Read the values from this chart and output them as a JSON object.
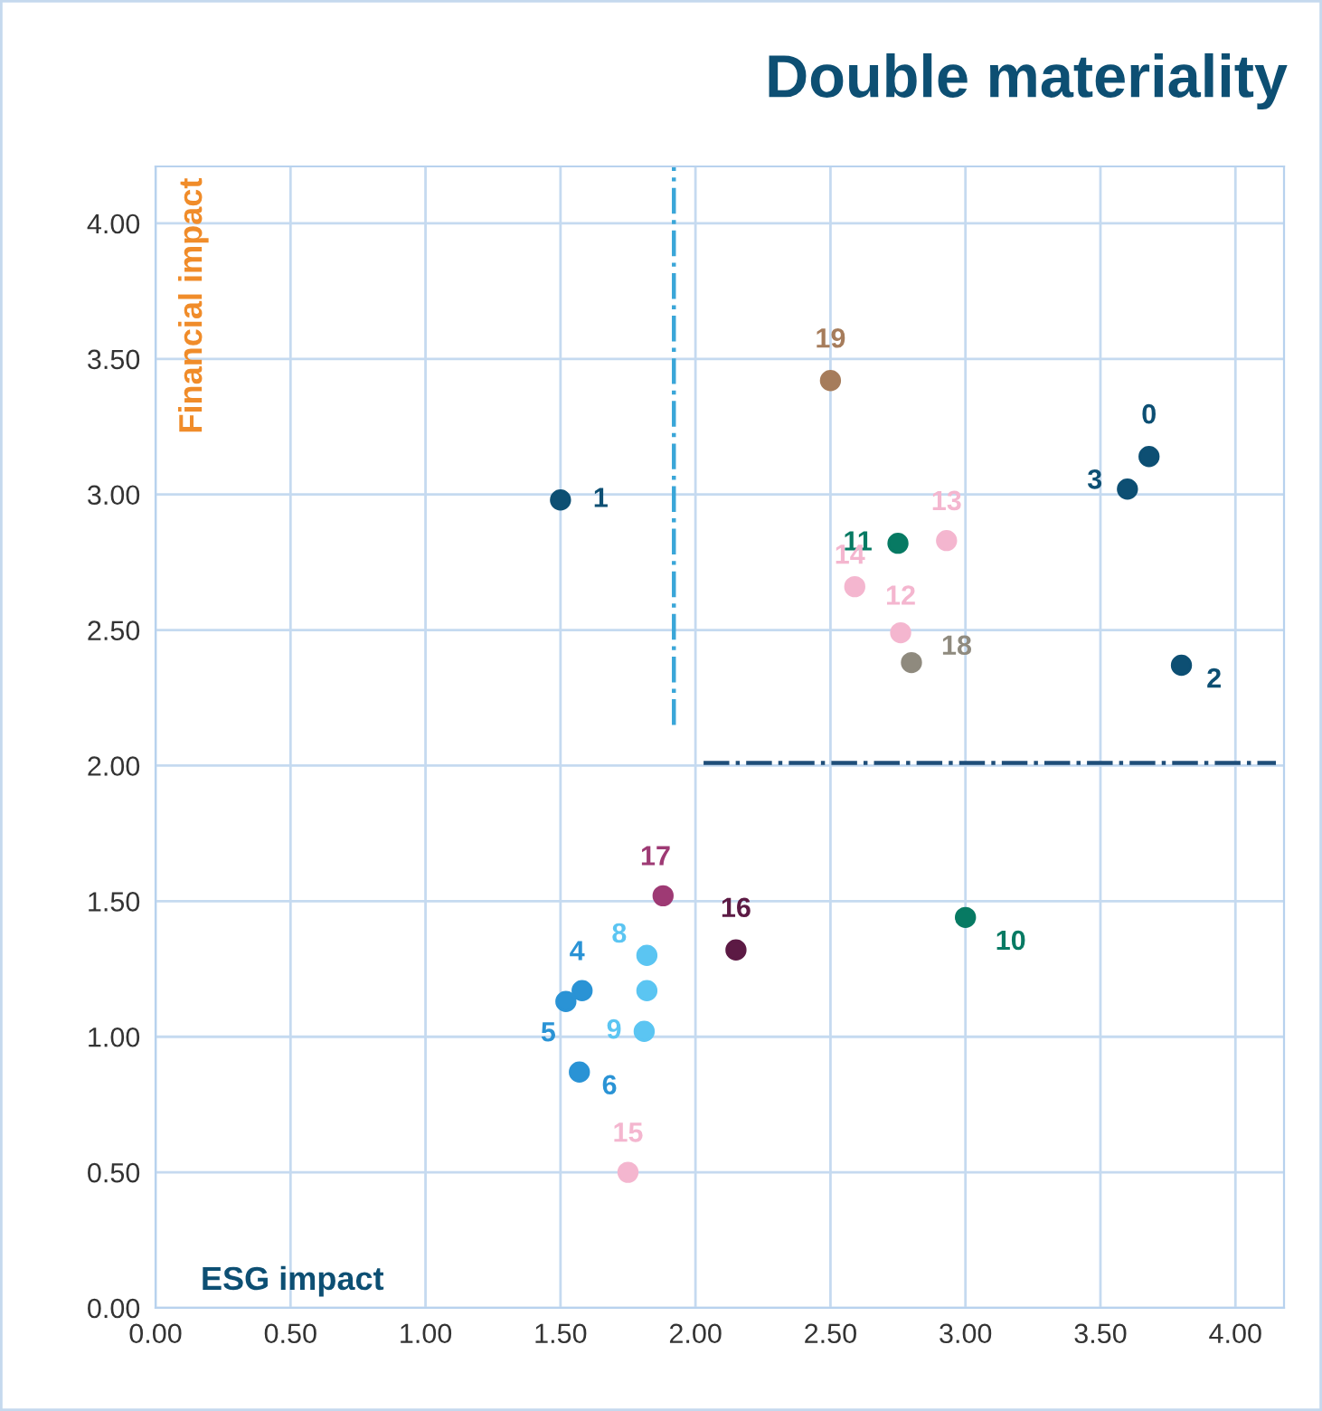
{
  "chart_data": {
    "type": "scatter",
    "title": "Double materiality",
    "xlabel": "ESG impact",
    "ylabel": "Financial impact",
    "xlim": [
      0,
      4.18
    ],
    "ylim": [
      0,
      4.21
    ],
    "xticks": [
      {
        "value": 0,
        "label": "0.00"
      },
      {
        "value": 0.5,
        "label": "0.50"
      },
      {
        "value": 1,
        "label": "1.00"
      },
      {
        "value": 1.5,
        "label": "1.50"
      },
      {
        "value": 2,
        "label": "2.00"
      },
      {
        "value": 2.5,
        "label": "2.50"
      },
      {
        "value": 3,
        "label": "3.00"
      },
      {
        "value": 3.5,
        "label": "3.50"
      },
      {
        "value": 4,
        "label": "4.00"
      }
    ],
    "yticks": [
      {
        "value": 0,
        "label": "0.00"
      },
      {
        "value": 0.5,
        "label": "0.50"
      },
      {
        "value": 1,
        "label": "1.00"
      },
      {
        "value": 1.5,
        "label": "1.50"
      },
      {
        "value": 2,
        "label": "2.00"
      },
      {
        "value": 2.5,
        "label": "2.50"
      },
      {
        "value": 3,
        "label": "3.00"
      },
      {
        "value": 3.5,
        "label": "3.50"
      },
      {
        "value": 4,
        "label": "4.00"
      }
    ],
    "grid": true,
    "marker": "circle",
    "ref_lines": [
      {
        "axis": "x",
        "value": 1.92,
        "color": "#3aa6d8",
        "line_style": "dashdot"
      },
      {
        "axis": "y",
        "value": 2.01,
        "color": "#1f4e79",
        "line_style": "dashdot"
      }
    ],
    "series": [
      {
        "name": "0",
        "color": "#0d4f73",
        "x": [
          3.68
        ],
        "values": [
          3.14
        ]
      },
      {
        "name": "1",
        "color": "#0d4f73",
        "x": [
          1.5
        ],
        "values": [
          2.98
        ]
      },
      {
        "name": "2",
        "color": "#0d4f73",
        "x": [
          3.8
        ],
        "values": [
          2.37
        ]
      },
      {
        "name": "3",
        "color": "#0d4f73",
        "x": [
          3.6
        ],
        "values": [
          3.02
        ]
      },
      {
        "name": "4",
        "color": "#2a93d5",
        "x": [
          1.58
        ],
        "values": [
          1.17
        ]
      },
      {
        "name": "5",
        "color": "#2a93d5",
        "x": [
          1.52
        ],
        "values": [
          1.13
        ]
      },
      {
        "name": "6",
        "color": "#2a93d5",
        "x": [
          1.57
        ],
        "values": [
          0.87
        ]
      },
      {
        "color": "#5bc5f2",
        "x": [
          1.82
        ],
        "values": [
          1.17
        ]
      },
      {
        "name": "8",
        "color": "#5bc5f2",
        "x": [
          1.82
        ],
        "values": [
          1.3
        ]
      },
      {
        "name": "9",
        "color": "#5bc5f2",
        "x": [
          1.81
        ],
        "values": [
          1.02
        ]
      },
      {
        "name": "10",
        "color": "#077a63",
        "x": [
          3.0
        ],
        "values": [
          1.44
        ]
      },
      {
        "name": "11",
        "color": "#077a63",
        "x": [
          2.75
        ],
        "values": [
          2.82
        ]
      },
      {
        "name": "12",
        "color": "#f4b6cf",
        "x": [
          2.76
        ],
        "values": [
          2.49
        ]
      },
      {
        "name": "13",
        "color": "#f4b6cf",
        "x": [
          2.93
        ],
        "values": [
          2.83
        ]
      },
      {
        "name": "14",
        "color": "#f4b6cf",
        "x": [
          2.59
        ],
        "values": [
          2.66
        ]
      },
      {
        "name": "15",
        "color": "#f4b6cf",
        "x": [
          1.75
        ],
        "values": [
          0.5
        ]
      },
      {
        "name": "16",
        "color": "#5c1a44",
        "x": [
          2.15
        ],
        "values": [
          1.32
        ]
      },
      {
        "name": "17",
        "color": "#9e3a74",
        "x": [
          1.88
        ],
        "values": [
          1.52
        ]
      },
      {
        "name": "18",
        "color": "#8f8a7e",
        "x": [
          2.8
        ],
        "values": [
          2.38
        ]
      },
      {
        "name": "19",
        "color": "#a67c5b",
        "x": [
          2.5
        ],
        "values": [
          3.42
        ]
      }
    ]
  }
}
